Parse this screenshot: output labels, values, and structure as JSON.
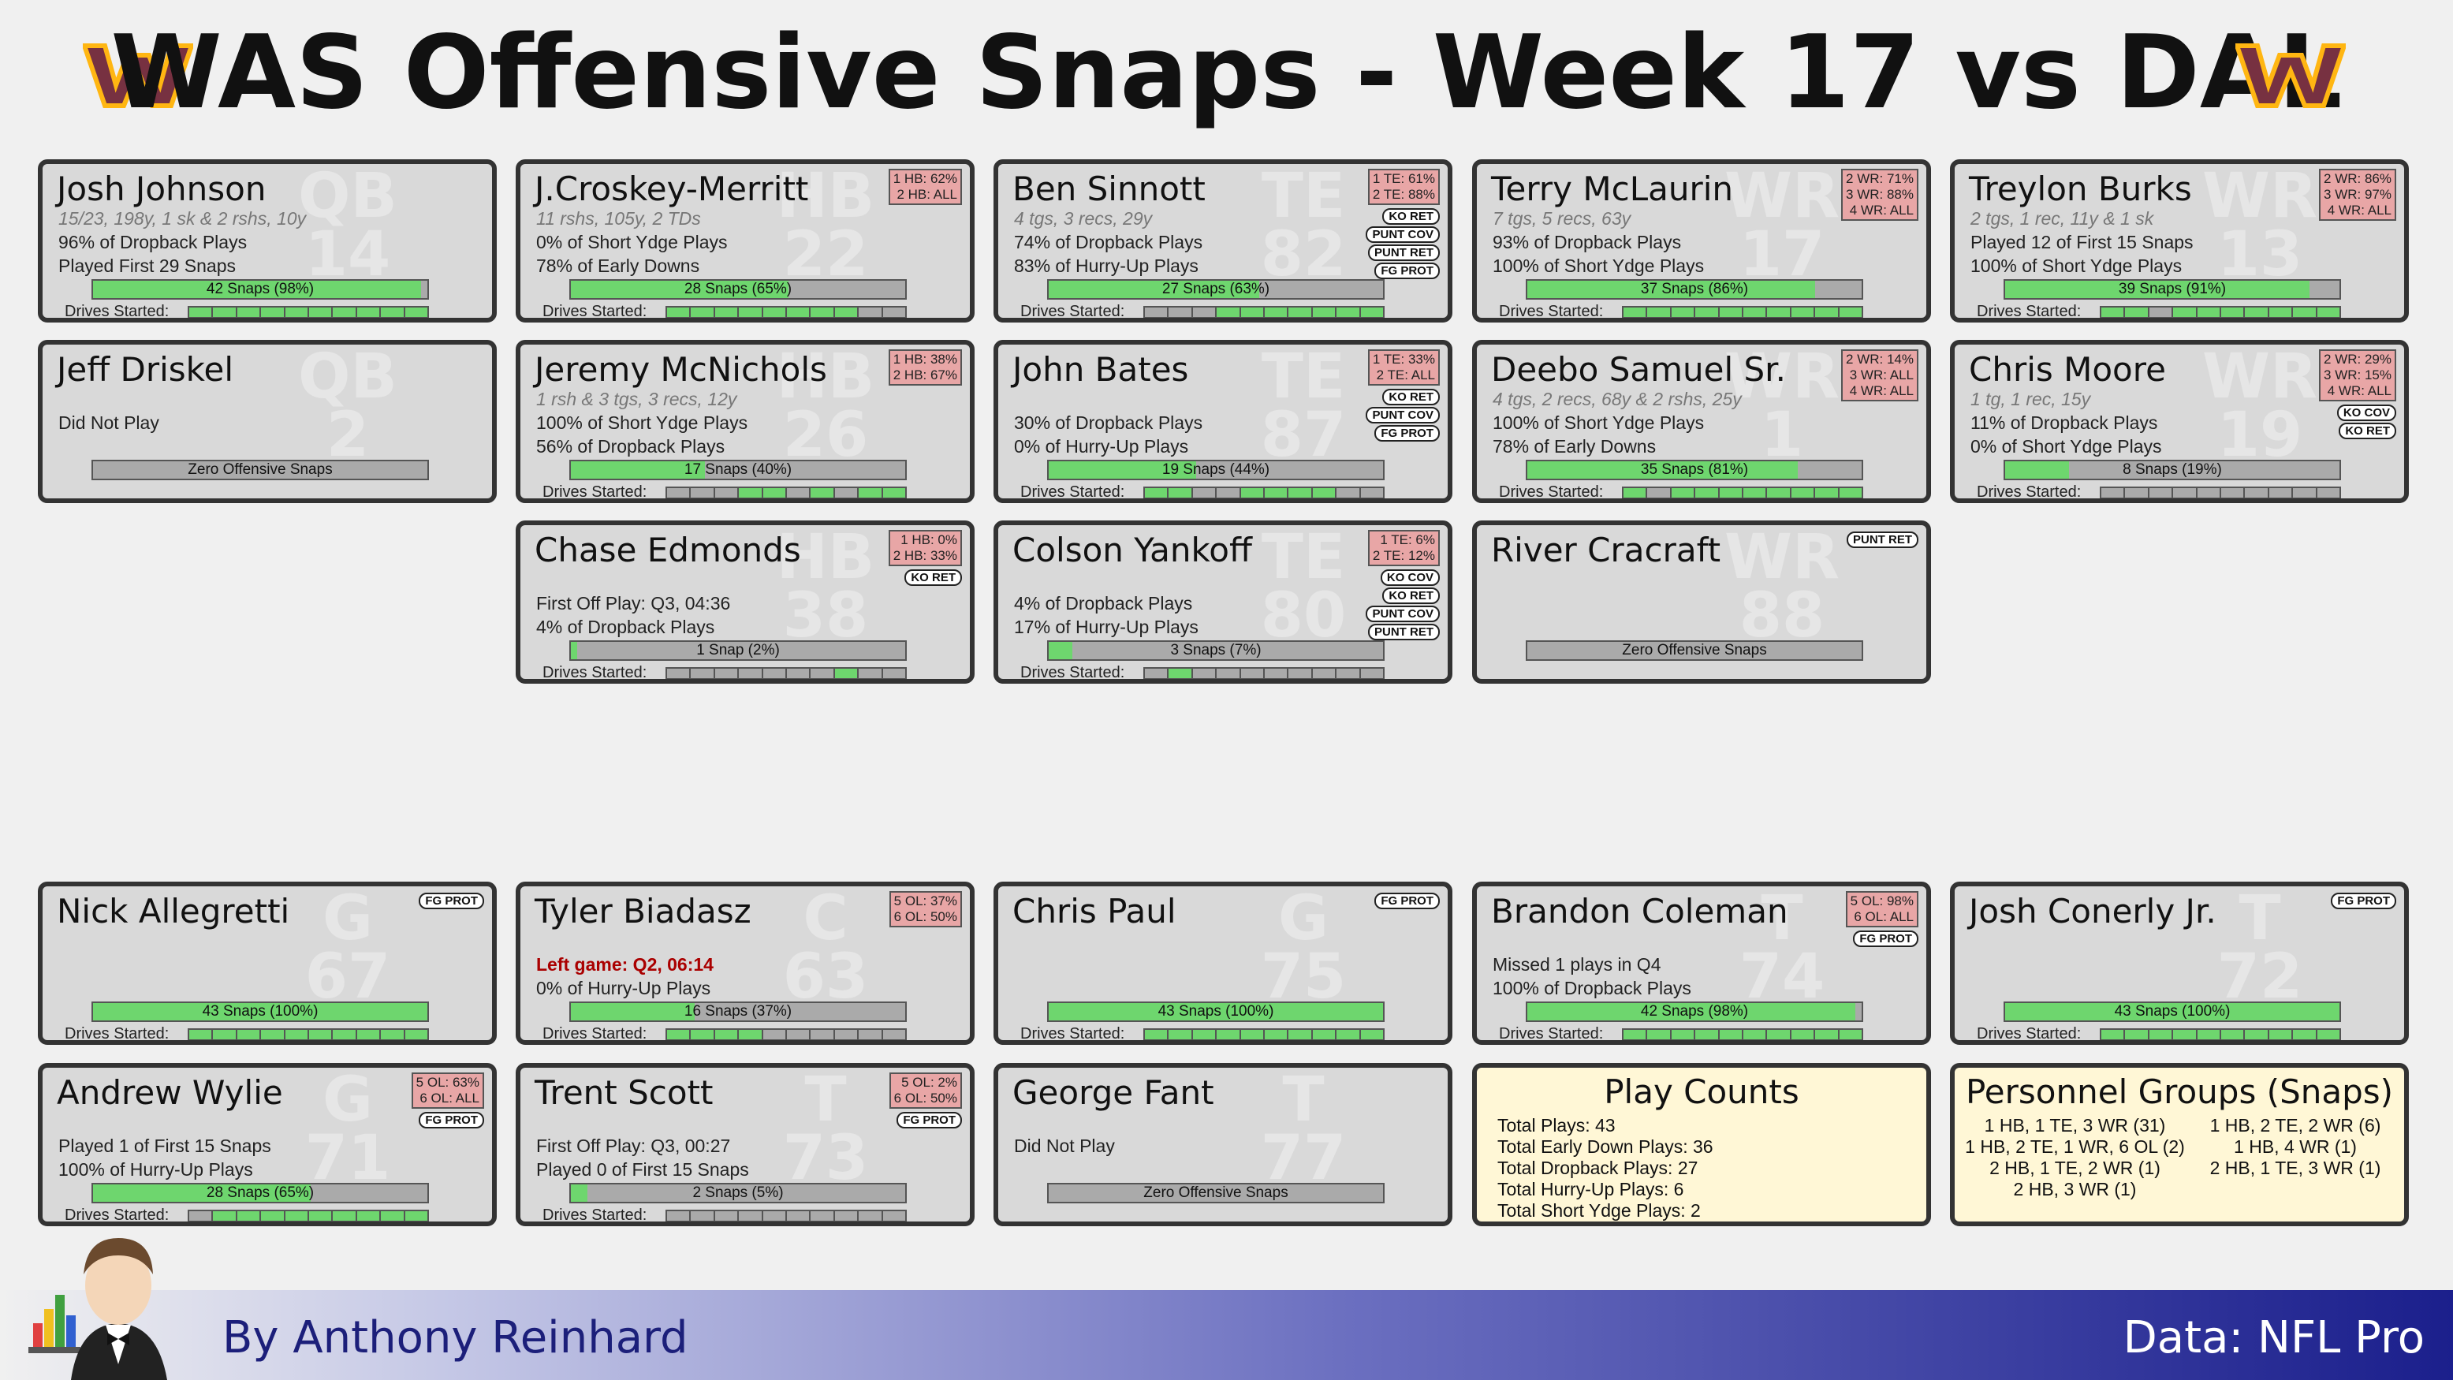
{
  "header": {
    "title": "WAS Offensive Snaps - Week 17 vs DAL",
    "logo_color": "#773141",
    "logo_accent": "#ffb612"
  },
  "colors": {
    "snap_fill": "#6ed66e",
    "bar_empty": "#aaaaaa",
    "pct_box": "#e8a6a6",
    "card_bg": "#d9d9d9",
    "summary_bg": "#fff7d6"
  },
  "players": [
    {
      "name": "Josh Johnson",
      "pos": "QB",
      "num": "14",
      "stats": "15/23, 198y, 1 sk & 2 rshs, 10y",
      "line1": "96% of Dropback Plays",
      "line2": "Played First 29 Snaps",
      "snap_label": "42 Snaps (98%)",
      "snap_pct": 98,
      "pct": [],
      "tags": [],
      "drives": [
        1,
        1,
        1,
        1,
        1,
        1,
        1,
        1,
        1,
        1
      ]
    },
    {
      "name": "J.Croskey-Merritt",
      "pos": "HB",
      "num": "22",
      "stats": "11 rshs, 105y, 2 TDs",
      "line1": "0% of Short Ydge Plays",
      "line2": "78% of Early Downs",
      "snap_label": "28 Snaps (65%)",
      "snap_pct": 65,
      "pct": [
        "1 HB: 62%",
        "2 HB: ALL"
      ],
      "tags": [],
      "drives": [
        1,
        1,
        1,
        1,
        1,
        1,
        1,
        1,
        0,
        0
      ]
    },
    {
      "name": "Ben Sinnott",
      "pos": "TE",
      "num": "82",
      "stats": "4 tgs, 3 recs, 29y",
      "line1": "74% of Dropback Plays",
      "line2": "83% of Hurry-Up Plays",
      "snap_label": "27 Snaps (63%)",
      "snap_pct": 63,
      "pct": [
        "1 TE: 61%",
        "2 TE: 88%"
      ],
      "tags": [
        "KO RET",
        "PUNT COV",
        "PUNT RET",
        "FG PROT"
      ],
      "drives": [
        0,
        0,
        0,
        1,
        1,
        1,
        1,
        1,
        1,
        1
      ]
    },
    {
      "name": "Terry McLaurin",
      "pos": "WR",
      "num": "17",
      "stats": "7 tgs, 5 recs, 63y",
      "line1": "93% of Dropback Plays",
      "line2": "100% of Short Ydge Plays",
      "snap_label": "37 Snaps (86%)",
      "snap_pct": 86,
      "pct": [
        "2 WR: 71%",
        "3 WR: 88%",
        "4 WR: ALL"
      ],
      "tags": [],
      "drives": [
        1,
        1,
        1,
        1,
        1,
        1,
        1,
        1,
        1,
        1
      ]
    },
    {
      "name": "Treylon Burks",
      "pos": "WR",
      "num": "13",
      "stats": "2 tgs, 1 rec, 11y & 1 sk",
      "line1": "Played 12 of First 15 Snaps",
      "line2": "100% of Short Ydge Plays",
      "snap_label": "39 Snaps (91%)",
      "snap_pct": 91,
      "pct": [
        "2 WR: 86%",
        "3 WR: 97%",
        "4 WR: ALL"
      ],
      "tags": [],
      "drives": [
        1,
        1,
        0,
        1,
        1,
        1,
        1,
        1,
        1,
        1
      ]
    },
    {
      "name": "Jeff Driskel",
      "pos": "QB",
      "num": "2",
      "stats": "",
      "line1": "Did Not Play",
      "line2": "",
      "snap_label": "Zero Offensive Snaps",
      "snap_pct": 0,
      "pct": [],
      "tags": [],
      "drives": null
    },
    {
      "name": "Jeremy McNichols",
      "pos": "HB",
      "num": "26",
      "stats": "1 rsh & 3 tgs, 3 recs, 12y",
      "line1": "100% of Short Ydge Plays",
      "line2": "56% of Dropback Plays",
      "snap_label": "17 Snaps (40%)",
      "snap_pct": 40,
      "pct": [
        "1 HB: 38%",
        "2 HB: 67%"
      ],
      "tags": [],
      "drives": [
        0,
        0,
        0,
        1,
        1,
        0,
        1,
        0,
        1,
        1
      ]
    },
    {
      "name": "John Bates",
      "pos": "TE",
      "num": "87",
      "stats": "",
      "line1": "30% of Dropback Plays",
      "line2": "0% of Hurry-Up Plays",
      "snap_label": "19 Snaps (44%)",
      "snap_pct": 44,
      "pct": [
        "1 TE: 33%",
        "2 TE: ALL"
      ],
      "tags": [
        "KO RET",
        "PUNT COV",
        "FG PROT"
      ],
      "drives": [
        1,
        1,
        0,
        0,
        1,
        1,
        1,
        1,
        0,
        0
      ]
    },
    {
      "name": "Deebo Samuel Sr.",
      "pos": "WR",
      "num": "1",
      "stats": "4 tgs, 2 recs, 68y & 2 rshs, 25y",
      "line1": "100% of Short Ydge Plays",
      "line2": "78% of Early Downs",
      "snap_label": "35 Snaps (81%)",
      "snap_pct": 81,
      "pct": [
        "2 WR: 14%",
        "3 WR: ALL",
        "4 WR: ALL"
      ],
      "tags": [],
      "drives": [
        1,
        0,
        1,
        1,
        1,
        1,
        1,
        1,
        1,
        1
      ]
    },
    {
      "name": "Chris Moore",
      "pos": "WR",
      "num": "19",
      "stats": "1 tg, 1 rec, 15y",
      "line1": "11% of Dropback Plays",
      "line2": "0% of Short Ydge Plays",
      "snap_label": "8 Snaps (19%)",
      "snap_pct": 19,
      "pct": [
        "2 WR: 29%",
        "3 WR: 15%",
        "4 WR: ALL"
      ],
      "tags": [
        "KO COV",
        "KO RET"
      ],
      "drives": [
        0,
        0,
        0,
        0,
        0,
        0,
        0,
        0,
        0,
        0
      ]
    },
    {
      "name": "Chase Edmonds",
      "pos": "HB",
      "num": "38",
      "stats": "",
      "line1": "First Off Play: Q3, 04:36",
      "line2": "4% of Dropback Plays",
      "snap_label": "1 Snap (2%)",
      "snap_pct": 2,
      "pct": [
        "1 HB: 0%",
        "2 HB: 33%"
      ],
      "tags": [
        "KO RET"
      ],
      "drives": [
        0,
        0,
        0,
        0,
        0,
        0,
        0,
        1,
        0,
        0
      ]
    },
    {
      "name": "Colson Yankoff",
      "pos": "TE",
      "num": "80",
      "stats": "",
      "line1": "4% of Dropback Plays",
      "line2": "17% of Hurry-Up Plays",
      "snap_label": "3 Snaps (7%)",
      "snap_pct": 7,
      "pct": [
        "1 TE: 6%",
        "2 TE: 12%"
      ],
      "tags": [
        "KO COV",
        "KO RET",
        "PUNT COV",
        "PUNT RET"
      ],
      "drives": [
        0,
        1,
        0,
        0,
        0,
        0,
        0,
        0,
        0,
        0
      ]
    },
    {
      "name": "River Cracraft",
      "pos": "WR",
      "num": "88",
      "stats": "",
      "line1": "",
      "line2": "",
      "snap_label": "Zero Offensive Snaps",
      "snap_pct": 0,
      "pct": [],
      "tags": [
        "PUNT RET"
      ],
      "drives": null
    },
    {
      "name": "Nick Allegretti",
      "pos": "G",
      "num": "67",
      "stats": "",
      "line1": "",
      "line2": "",
      "snap_label": "43 Snaps (100%)",
      "snap_pct": 100,
      "pct": [],
      "tags": [
        "FG PROT"
      ],
      "drives": [
        1,
        1,
        1,
        1,
        1,
        1,
        1,
        1,
        1,
        1
      ]
    },
    {
      "name": "Tyler Biadasz",
      "pos": "C",
      "num": "63",
      "stats": "",
      "line1": "Left game: Q2, 06:14",
      "line1_red": true,
      "line2": "0% of Hurry-Up Plays",
      "snap_label": "16 Snaps (37%)",
      "snap_pct": 37,
      "pct": [
        "5 OL: 37%",
        "6 OL: 50%"
      ],
      "tags": [],
      "drives": [
        1,
        1,
        1,
        1,
        0,
        0,
        0,
        0,
        0,
        0
      ]
    },
    {
      "name": "Chris Paul",
      "pos": "G",
      "num": "75",
      "stats": "",
      "line1": "",
      "line2": "",
      "snap_label": "43 Snaps (100%)",
      "snap_pct": 100,
      "pct": [],
      "tags": [
        "FG PROT"
      ],
      "drives": [
        1,
        1,
        1,
        1,
        1,
        1,
        1,
        1,
        1,
        1
      ]
    },
    {
      "name": "Brandon Coleman",
      "pos": "T",
      "num": "74",
      "stats": "",
      "line1": "Missed 1 plays in Q4",
      "line2": "100% of Dropback Plays",
      "snap_label": "42 Snaps (98%)",
      "snap_pct": 98,
      "pct": [
        "5 OL: 98%",
        "6 OL: ALL"
      ],
      "tags": [
        "FG PROT"
      ],
      "drives": [
        1,
        1,
        1,
        1,
        1,
        1,
        1,
        1,
        1,
        1
      ]
    },
    {
      "name": "Josh Conerly Jr.",
      "pos": "T",
      "num": "72",
      "stats": "",
      "line1": "",
      "line2": "",
      "snap_label": "43 Snaps (100%)",
      "snap_pct": 100,
      "pct": [],
      "tags": [
        "FG PROT"
      ],
      "drives": [
        1,
        1,
        1,
        1,
        1,
        1,
        1,
        1,
        1,
        1
      ]
    },
    {
      "name": "Andrew Wylie",
      "pos": "G",
      "num": "71",
      "stats": "",
      "line1": "Played 1 of First 15 Snaps",
      "line2": "100% of Hurry-Up Plays",
      "snap_label": "28 Snaps (65%)",
      "snap_pct": 65,
      "pct": [
        "5 OL: 63%",
        "6 OL: ALL"
      ],
      "tags": [
        "FG PROT"
      ],
      "drives": [
        0,
        1,
        1,
        1,
        1,
        1,
        1,
        1,
        1,
        1
      ]
    },
    {
      "name": "Trent Scott",
      "pos": "T",
      "num": "73",
      "stats": "",
      "line1": "First Off Play: Q3, 00:27",
      "line2": "Played 0 of First 15 Snaps",
      "snap_label": "2 Snaps (5%)",
      "snap_pct": 5,
      "pct": [
        "5 OL: 2%",
        "6 OL: 50%"
      ],
      "tags": [
        "FG PROT"
      ],
      "drives": [
        0,
        0,
        0,
        0,
        0,
        0,
        0,
        0,
        0,
        0
      ]
    },
    {
      "name": "George Fant",
      "pos": "T",
      "num": "77",
      "stats": "",
      "line1": "Did Not Play",
      "line2": "",
      "snap_label": "Zero Offensive Snaps",
      "snap_pct": 0,
      "pct": [],
      "tags": [],
      "drives": null
    }
  ],
  "drives_label": "Drives Started:",
  "play_counts": {
    "title": "Play Counts",
    "items": [
      "Total Plays: 43",
      "Total Early Down Plays: 36",
      "Total Dropback Plays: 27",
      "Total Hurry-Up Plays: 6",
      "Total Short Ydge Plays: 2"
    ]
  },
  "personnel": {
    "title": "Personnel Groups (Snaps)",
    "left": [
      "1 HB, 1 TE, 3 WR (31)",
      "1 HB, 2 TE, 1 WR, 6 OL (2)",
      "2 HB, 1 TE, 2 WR (1)",
      "2 HB, 3 WR (1)"
    ],
    "right": [
      "1 HB, 2 TE, 2 WR (6)",
      "1 HB, 4 WR (1)",
      "2 HB, 1 TE, 3 WR (1)"
    ]
  },
  "footer": {
    "byline": "By Anthony Reinhard",
    "source": "Data: NFL Pro"
  }
}
